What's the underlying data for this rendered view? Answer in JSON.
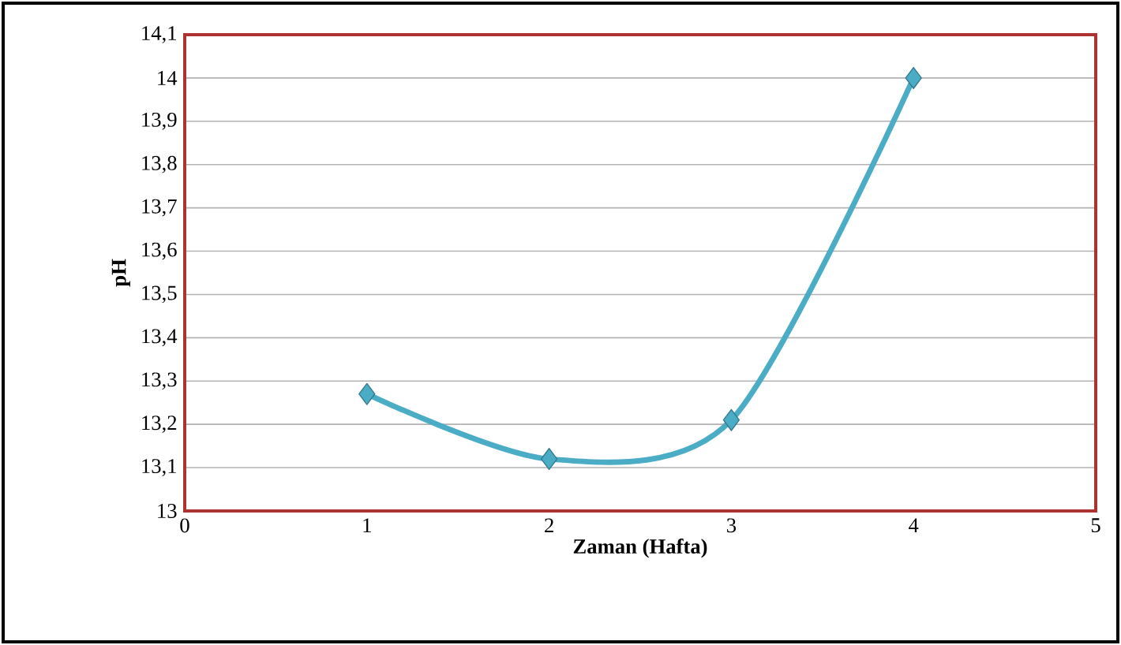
{
  "chart_data": {
    "type": "line",
    "xlabel": "Zaman (Hafta)",
    "ylabel": "pH",
    "x": [
      1,
      2,
      3,
      4
    ],
    "series": [
      {
        "color": "#4bacc6",
        "values": [
          13.27,
          13.12,
          13.21,
          14.0
        ]
      }
    ],
    "xlim": [
      0,
      5
    ],
    "xticks": [
      0,
      1,
      2,
      3,
      4,
      5
    ],
    "ylim": [
      13,
      14.1
    ],
    "yticks": [
      13,
      {
        "value": 13.1,
        "label": "13,1"
      },
      {
        "value": 13.2,
        "label": "13,2"
      },
      {
        "value": 13.3,
        "label": "13,3"
      },
      {
        "value": 13.4,
        "label": "13,4"
      },
      {
        "value": 13.5,
        "label": "13,5"
      },
      {
        "value": 13.6,
        "label": "13,6"
      },
      {
        "value": 13.7,
        "label": "13,7"
      },
      {
        "value": 13.8,
        "label": "13,8"
      },
      {
        "value": 13.9,
        "label": "13,9"
      },
      14,
      {
        "value": 14.1,
        "label": "14,1"
      }
    ],
    "grid": "y",
    "marker": "diamond",
    "line_style": "solid"
  }
}
